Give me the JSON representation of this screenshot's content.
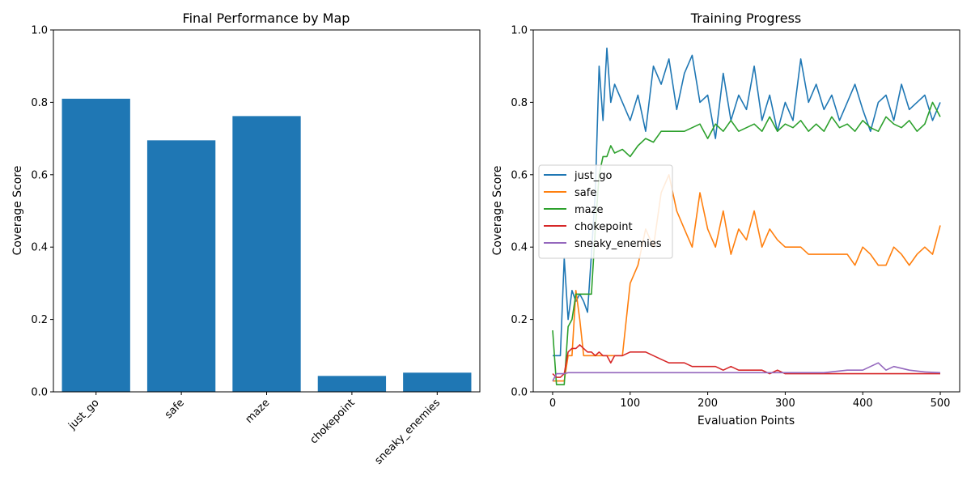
{
  "colors": {
    "just_go": "#1f77b4",
    "safe": "#ff7f0e",
    "maze": "#2ca02c",
    "chokepoint": "#d62728",
    "sneaky_enemies": "#9467bd"
  },
  "chart_data": [
    {
      "type": "bar",
      "title": "Final Performance by Map",
      "xlabel": "",
      "ylabel": "Coverage Score",
      "ylim": [
        0,
        1.0
      ],
      "yticks": [
        "0.0",
        "0.2",
        "0.4",
        "0.6",
        "0.8",
        "1.0"
      ],
      "categories": [
        "just_go",
        "safe",
        "maze",
        "chokepoint",
        "sneaky_enemies"
      ],
      "values": [
        0.81,
        0.695,
        0.762,
        0.044,
        0.053
      ],
      "grid": false
    },
    {
      "type": "line",
      "title": "Training Progress",
      "xlabel": "Evaluation Points",
      "ylabel": "Coverage Score",
      "xlim": [
        -25,
        525
      ],
      "ylim": [
        0,
        1.0
      ],
      "xticks": [
        "0",
        "100",
        "200",
        "300",
        "400",
        "500"
      ],
      "yticks": [
        "0.0",
        "0.2",
        "0.4",
        "0.6",
        "0.8",
        "1.0"
      ],
      "legend_position": "center-left",
      "grid": false,
      "series": [
        {
          "name": "just_go",
          "x": [
            0,
            5,
            10,
            15,
            20,
            25,
            30,
            35,
            40,
            45,
            50,
            55,
            60,
            65,
            70,
            75,
            80,
            90,
            100,
            110,
            120,
            130,
            140,
            150,
            160,
            170,
            180,
            190,
            200,
            210,
            220,
            230,
            240,
            250,
            260,
            270,
            280,
            290,
            300,
            310,
            320,
            330,
            340,
            350,
            360,
            370,
            380,
            390,
            400,
            410,
            420,
            430,
            440,
            450,
            460,
            470,
            480,
            490,
            500
          ],
          "y": [
            0.1,
            0.1,
            0.1,
            0.37,
            0.2,
            0.28,
            0.25,
            0.27,
            0.25,
            0.22,
            0.38,
            0.55,
            0.9,
            0.75,
            0.95,
            0.8,
            0.85,
            0.8,
            0.75,
            0.82,
            0.72,
            0.9,
            0.85,
            0.92,
            0.78,
            0.88,
            0.93,
            0.8,
            0.82,
            0.7,
            0.88,
            0.75,
            0.82,
            0.78,
            0.9,
            0.75,
            0.82,
            0.72,
            0.8,
            0.75,
            0.92,
            0.8,
            0.85,
            0.78,
            0.82,
            0.75,
            0.8,
            0.85,
            0.78,
            0.72,
            0.8,
            0.82,
            0.75,
            0.85,
            0.78,
            0.8,
            0.82,
            0.75,
            0.8
          ]
        },
        {
          "name": "safe",
          "x": [
            0,
            5,
            10,
            15,
            20,
            25,
            30,
            35,
            40,
            45,
            50,
            55,
            60,
            65,
            70,
            75,
            80,
            90,
            100,
            110,
            120,
            130,
            140,
            150,
            160,
            170,
            180,
            190,
            200,
            210,
            220,
            230,
            240,
            250,
            260,
            270,
            280,
            290,
            300,
            310,
            320,
            330,
            340,
            350,
            360,
            370,
            380,
            390,
            400,
            410,
            420,
            430,
            440,
            450,
            460,
            470,
            480,
            490,
            500
          ],
          "y": [
            0.03,
            0.03,
            0.03,
            0.03,
            0.1,
            0.1,
            0.28,
            0.2,
            0.1,
            0.1,
            0.1,
            0.1,
            0.1,
            0.1,
            0.1,
            0.1,
            0.1,
            0.1,
            0.3,
            0.35,
            0.45,
            0.4,
            0.55,
            0.6,
            0.5,
            0.45,
            0.4,
            0.55,
            0.45,
            0.4,
            0.5,
            0.38,
            0.45,
            0.42,
            0.5,
            0.4,
            0.45,
            0.42,
            0.4,
            0.4,
            0.4,
            0.38,
            0.38,
            0.38,
            0.38,
            0.38,
            0.38,
            0.35,
            0.4,
            0.38,
            0.35,
            0.35,
            0.4,
            0.38,
            0.35,
            0.38,
            0.4,
            0.38,
            0.46
          ]
        },
        {
          "name": "maze",
          "x": [
            0,
            5,
            10,
            15,
            20,
            25,
            30,
            35,
            40,
            45,
            50,
            55,
            60,
            65,
            70,
            75,
            80,
            90,
            100,
            110,
            120,
            130,
            140,
            150,
            160,
            170,
            180,
            190,
            200,
            210,
            220,
            230,
            240,
            250,
            260,
            270,
            280,
            290,
            300,
            310,
            320,
            330,
            340,
            350,
            360,
            370,
            380,
            390,
            400,
            410,
            420,
            430,
            440,
            450,
            460,
            470,
            480,
            490,
            500
          ],
          "y": [
            0.17,
            0.02,
            0.02,
            0.02,
            0.18,
            0.2,
            0.27,
            0.27,
            0.27,
            0.27,
            0.27,
            0.45,
            0.6,
            0.65,
            0.65,
            0.68,
            0.66,
            0.67,
            0.65,
            0.68,
            0.7,
            0.69,
            0.72,
            0.72,
            0.72,
            0.72,
            0.73,
            0.74,
            0.7,
            0.74,
            0.72,
            0.75,
            0.72,
            0.73,
            0.74,
            0.72,
            0.76,
            0.72,
            0.74,
            0.73,
            0.75,
            0.72,
            0.74,
            0.72,
            0.76,
            0.73,
            0.74,
            0.72,
            0.75,
            0.73,
            0.72,
            0.76,
            0.74,
            0.73,
            0.75,
            0.72,
            0.74,
            0.8,
            0.76
          ]
        },
        {
          "name": "chokepoint",
          "x": [
            0,
            5,
            10,
            15,
            20,
            25,
            30,
            35,
            40,
            45,
            50,
            55,
            60,
            65,
            70,
            75,
            80,
            90,
            100,
            110,
            120,
            130,
            140,
            150,
            160,
            170,
            180,
            190,
            200,
            210,
            220,
            230,
            240,
            250,
            260,
            270,
            280,
            290,
            300,
            310,
            320,
            330,
            340,
            350,
            360,
            370,
            380,
            390,
            400,
            410,
            420,
            430,
            440,
            450,
            460,
            470,
            480,
            490,
            500
          ],
          "y": [
            0.05,
            0.04,
            0.04,
            0.05,
            0.11,
            0.12,
            0.12,
            0.13,
            0.12,
            0.11,
            0.11,
            0.1,
            0.11,
            0.1,
            0.1,
            0.08,
            0.1,
            0.1,
            0.11,
            0.11,
            0.11,
            0.1,
            0.09,
            0.08,
            0.08,
            0.08,
            0.07,
            0.07,
            0.07,
            0.07,
            0.06,
            0.07,
            0.06,
            0.06,
            0.06,
            0.06,
            0.05,
            0.06,
            0.05,
            0.05,
            0.05,
            0.05,
            0.05,
            0.05,
            0.05,
            0.05,
            0.05,
            0.05,
            0.05,
            0.05,
            0.05,
            0.05,
            0.05,
            0.05,
            0.05,
            0.05,
            0.05,
            0.05,
            0.05
          ]
        },
        {
          "name": "sneaky_enemies",
          "x": [
            0,
            5,
            10,
            15,
            20,
            50,
            100,
            150,
            200,
            250,
            300,
            350,
            380,
            400,
            420,
            430,
            440,
            460,
            480,
            500
          ],
          "y": [
            0.03,
            0.05,
            0.05,
            0.05,
            0.053,
            0.053,
            0.053,
            0.053,
            0.053,
            0.053,
            0.053,
            0.053,
            0.06,
            0.06,
            0.08,
            0.06,
            0.07,
            0.06,
            0.055,
            0.053
          ]
        }
      ]
    }
  ]
}
